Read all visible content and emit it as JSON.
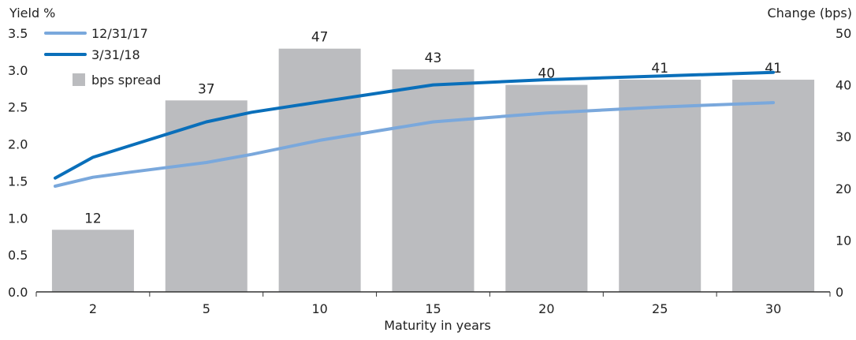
{
  "chart_data": {
    "type": "bar",
    "title": "",
    "xlabel": "Maturity in years",
    "ylabel_left": "Yield %",
    "ylabel_right": "Change (bps)",
    "categories": [
      "2",
      "5",
      "10",
      "15",
      "20",
      "25",
      "30"
    ],
    "ylim_left": [
      0,
      3.5
    ],
    "yticks_left": [
      "0.0",
      "0.5",
      "1.0",
      "1.5",
      "2.0",
      "2.5",
      "3.0",
      "3.5"
    ],
    "ylim_right": [
      0,
      50
    ],
    "yticks_right": [
      "0",
      "10",
      "20",
      "30",
      "40",
      "50"
    ],
    "grid": false,
    "legend_position": "top-left",
    "bars": {
      "name": "bps spread",
      "axis": "right",
      "color": "#bbbcbf",
      "values": [
        12,
        37,
        47,
        43,
        40,
        41,
        41
      ]
    },
    "series": [
      {
        "name": "12/31/17",
        "axis": "left",
        "color": "#7aa8dc",
        "x": [
          1,
          2,
          3,
          5,
          7,
          10,
          15,
          20,
          25,
          30
        ],
        "y": [
          1.43,
          1.55,
          1.62,
          1.75,
          1.86,
          2.05,
          2.3,
          2.42,
          2.5,
          2.56
        ]
      },
      {
        "name": "3/31/18",
        "axis": "left",
        "color": "#0a6fba",
        "x": [
          1,
          2,
          3,
          5,
          7,
          10,
          15,
          20,
          25,
          30
        ],
        "y": [
          1.54,
          1.82,
          1.98,
          2.3,
          2.43,
          2.57,
          2.8,
          2.87,
          2.92,
          2.97
        ]
      }
    ]
  }
}
